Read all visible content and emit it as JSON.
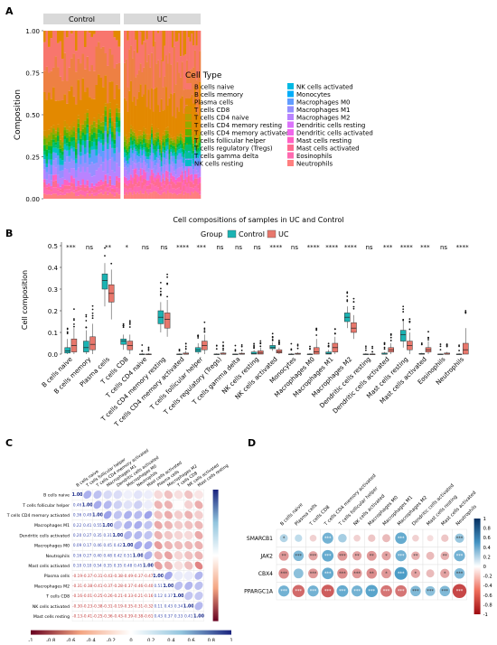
{
  "panels": {
    "a": "A",
    "b": "B",
    "c": "C",
    "d": "D"
  },
  "chart_data": [
    {
      "type": "area",
      "panel": "A",
      "facets": [
        "Control",
        "UC"
      ],
      "ylabel": "Composition",
      "yticks": [
        "0.00",
        "0.25",
        "0.50",
        "0.75",
        "1.00"
      ],
      "ylim": [
        0,
        1
      ],
      "legend_title": "Cell Type",
      "legend_placement": "right",
      "cell_types": [
        "B cells naive",
        "B cells memory",
        "Plasma cells",
        "T cells CD8",
        "T cells CD4 naive",
        "T cells CD4 memory resting",
        "T cells CD4 memory activated",
        "T cells follicular helper",
        "T cells regulatory (Tregs)",
        "T cells gamma delta",
        "NK cells resting",
        "NK cells activated",
        "Monocytes",
        "Macrophages M0",
        "Macrophages M1",
        "Macrophages M2",
        "Dendritic cells resting",
        "Dendritic cells activated",
        "Mast cells resting",
        "Mast cells activated",
        "Eosinophils",
        "Neutrophils"
      ],
      "colors": [
        "#F8766D",
        "#EE8043",
        "#E38900",
        "#D39200",
        "#B79F00",
        "#93AA00",
        "#5EB300",
        "#00BA38",
        "#00BF74",
        "#00C19F",
        "#00BFC4",
        "#00B9E3",
        "#00ADFA",
        "#619CFF",
        "#9590FF",
        "#B983FF",
        "#DB72FB",
        "#F066EA",
        "#FF61C3",
        "#FF6C91",
        "#FF6AB0",
        "#FF7F7F"
      ],
      "mean_composition": {
        "Control": {
          "Neutrophils_Mast_DC": 0.1,
          "Macrophages": 0.18,
          "T_cells": 0.18,
          "Plasma_B": 0.54
        },
        "UC": {
          "Neutrophils_Mast_DC": 0.15,
          "Macrophages": 0.12,
          "T_cells": 0.13,
          "Plasma_B": 0.6
        }
      }
    },
    {
      "type": "box",
      "panel": "B",
      "title": "Cell compositions of samples in UC and Control",
      "legend_title": "Group",
      "legend_placement": "top",
      "series": [
        {
          "name": "Control",
          "color": "#1BB3B3"
        },
        {
          "name": "UC",
          "color": "#E8776C"
        }
      ],
      "ylabel": "Cell composition",
      "ylim": [
        0,
        0.5
      ],
      "yticks": [
        "0.0",
        "0.1",
        "0.2",
        "0.3",
        "0.4",
        "0.5"
      ],
      "categories": [
        "B cells naive",
        "B cells memory",
        "Plasma cells",
        "T cells CD8",
        "T cells CD4 naive",
        "T cells CD4 memory resting",
        "T cells CD4 memory activated",
        "T cells follicular helper",
        "T cells regulatory (Tregs)",
        "T cells gamma delta",
        "NK cells resting",
        "NK cells activated",
        "Monocytes",
        "Macrophages M0",
        "Macrophages M1",
        "Macrophages M2",
        "Dendritic cells resting",
        "Dendritic cells activated",
        "Mast cells resting",
        "Mast cells activated",
        "Eosinophils",
        "Neutrophils"
      ],
      "significance": [
        "***",
        "ns",
        "**",
        "*",
        "ns",
        "ns",
        "****",
        "***",
        "ns",
        "ns",
        "ns",
        "****",
        "ns",
        "****",
        "****",
        "****",
        "ns",
        "***",
        "****",
        "***",
        "ns",
        "****"
      ],
      "control": [
        [
          0.0,
          0.005,
          0.015,
          0.03,
          0.07
        ],
        [
          0.0,
          0.01,
          0.03,
          0.06,
          0.11
        ],
        [
          0.22,
          0.3,
          0.34,
          0.37,
          0.42
        ],
        [
          0.02,
          0.045,
          0.06,
          0.07,
          0.09
        ],
        [
          0,
          0,
          0,
          0,
          0.004
        ],
        [
          0.1,
          0.14,
          0.17,
          0.2,
          0.24
        ],
        [
          0,
          0,
          0,
          0,
          0.003
        ],
        [
          0.0,
          0.01,
          0.02,
          0.03,
          0.05
        ],
        [
          0,
          0,
          0,
          0,
          0.003
        ],
        [
          0,
          0,
          0,
          0,
          0.002
        ],
        [
          0,
          0,
          0.002,
          0.01,
          0.02
        ],
        [
          0.015,
          0.025,
          0.03,
          0.04,
          0.055
        ],
        [
          0,
          0,
          0,
          0,
          0.004
        ],
        [
          0,
          0,
          0,
          0,
          0.004
        ],
        [
          0,
          0,
          0.003,
          0.01,
          0.02
        ],
        [
          0.12,
          0.15,
          0.17,
          0.19,
          0.22
        ],
        [
          0,
          0,
          0,
          0,
          0.004
        ],
        [
          0,
          0,
          0,
          0.005,
          0.01
        ],
        [
          0.03,
          0.06,
          0.09,
          0.11,
          0.15
        ],
        [
          0,
          0,
          0,
          0.003,
          0.006
        ],
        [
          0,
          0,
          0,
          0,
          0.002
        ],
        [
          0,
          0,
          0,
          0,
          0.004
        ]
      ],
      "uc": [
        [
          0.0,
          0.01,
          0.04,
          0.07,
          0.12
        ],
        [
          0.0,
          0.02,
          0.045,
          0.08,
          0.14
        ],
        [
          0.16,
          0.24,
          0.28,
          0.32,
          0.39
        ],
        [
          0.0,
          0.02,
          0.04,
          0.06,
          0.09
        ],
        [
          0,
          0,
          0,
          0,
          0.004
        ],
        [
          0.08,
          0.12,
          0.16,
          0.19,
          0.25
        ],
        [
          0,
          0,
          0,
          0.005,
          0.015
        ],
        [
          0.0,
          0.02,
          0.04,
          0.06,
          0.09
        ],
        [
          0,
          0,
          0,
          0.005,
          0.01
        ],
        [
          0,
          0,
          0,
          0.004,
          0.008
        ],
        [
          0,
          0,
          0.005,
          0.015,
          0.03
        ],
        [
          0.0,
          0.005,
          0.01,
          0.02,
          0.03
        ],
        [
          0,
          0,
          0,
          0.004,
          0.008
        ],
        [
          0,
          0,
          0.01,
          0.03,
          0.07
        ],
        [
          0,
          0.01,
          0.03,
          0.05,
          0.08
        ],
        [
          0.07,
          0.1,
          0.12,
          0.145,
          0.18
        ],
        [
          0,
          0,
          0,
          0,
          0.004
        ],
        [
          0,
          0.01,
          0.02,
          0.03,
          0.05
        ],
        [
          0,
          0.02,
          0.04,
          0.06,
          0.1
        ],
        [
          0,
          0.01,
          0.02,
          0.03,
          0.06
        ],
        [
          0,
          0,
          0,
          0.005,
          0.01
        ],
        [
          0,
          0,
          0.02,
          0.05,
          0.12
        ]
      ]
    },
    {
      "type": "heatmap",
      "panel": "C",
      "labels": [
        "B cells naive",
        "T cells follicular helper",
        "T cells CD4 memory activated",
        "Macrophages M1",
        "Dendritic cells activated",
        "Macrophages M0",
        "Neutrophils",
        "Mast cells activated",
        "Plasma cells",
        "Macrophages M2",
        "T cells CD8",
        "NK cells activated",
        "Mast cells resting"
      ],
      "colorbar": [
        "-1",
        "-0.8",
        "-0.6",
        "-0.4",
        "-0.2",
        "0",
        "0.2",
        "0.4",
        "0.6",
        "0.8",
        "1"
      ],
      "matrix": [
        [
          "1.00",
          "0.46",
          "0.36",
          "0.22",
          "0.20",
          "0.09",
          "0.16",
          "0.10",
          "-0.19",
          "-0.31",
          "-0.16",
          "-0.30",
          "-0.13"
        ],
        [
          "0.46",
          "1.00",
          "0.49",
          "0.41",
          "0.27",
          "0.17",
          "0.27",
          "0.10",
          "-0.37",
          "-0.38",
          "-0.01",
          "-0.23",
          "-0.41"
        ],
        [
          "0.36",
          "0.49",
          "1.00",
          "0.55",
          "0.35",
          "0.46",
          "0.40",
          "0.54",
          "-0.31",
          "-0.41",
          "-0.25",
          "-0.38",
          "-0.25"
        ],
        [
          "0.22",
          "0.41",
          "0.55",
          "1.00",
          "0.31",
          "0.45",
          "0.48",
          "0.35",
          "-0.43",
          "-0.37",
          "-0.26",
          "-0.31",
          "-0.36"
        ],
        [
          "0.20",
          "0.27",
          "0.35",
          "0.31",
          "1.00",
          "0.42",
          "0.42",
          "0.35",
          "-0.38",
          "-0.28",
          "-0.21",
          "-0.19",
          "-0.43"
        ],
        [
          "0.09",
          "0.17",
          "0.46",
          "0.45",
          "0.42",
          "1.00",
          "0.51",
          "0.48",
          "-0.49",
          "-0.37",
          "-0.33",
          "-0.35",
          "-0.39"
        ],
        [
          "0.16",
          "0.27",
          "0.40",
          "0.48",
          "0.42",
          "0.51",
          "1.00",
          "0.45",
          "-0.37",
          "-0.46",
          "-0.21",
          "-0.31",
          "-0.38"
        ],
        [
          "0.10",
          "0.10",
          "0.54",
          "0.35",
          "0.35",
          "0.48",
          "0.45",
          "1.00",
          "-0.47",
          "-0.40",
          "-0.16",
          "-0.32",
          "-0.61"
        ],
        [
          "-0.19",
          "-0.37",
          "-0.31",
          "-0.43",
          "-0.38",
          "-0.49",
          "-0.37",
          "-0.47",
          "1.00",
          "0.51",
          "0.12",
          "0.11",
          "0.43"
        ],
        [
          "-0.31",
          "-0.38",
          "-0.41",
          "-0.37",
          "-0.28",
          "-0.37",
          "-0.46",
          "-0.40",
          "0.51",
          "1.00",
          "0.37",
          "0.43",
          "0.37"
        ],
        [
          "-0.16",
          "-0.01",
          "-0.25",
          "-0.26",
          "-0.21",
          "-0.33",
          "-0.21",
          "-0.16",
          "0.12",
          "0.37",
          "1.00",
          "0.34",
          "0.33"
        ],
        [
          "-0.30",
          "-0.23",
          "-0.38",
          "-0.31",
          "-0.19",
          "-0.35",
          "-0.31",
          "-0.32",
          "0.11",
          "0.43",
          "0.34",
          "1.00",
          "0.41"
        ],
        [
          "-0.13",
          "-0.41",
          "-0.25",
          "-0.36",
          "-0.43",
          "-0.39",
          "-0.38",
          "-0.61",
          "0.43",
          "0.37",
          "0.33",
          "0.41",
          "1.00"
        ]
      ]
    },
    {
      "type": "heatmap",
      "panel": "D",
      "columns": [
        "B cells naive",
        "Plasma cells",
        "T cells CD8",
        "T cells CD4 memory activated",
        "T cells follicular helper",
        "NK cells activated",
        "Macrophages M0",
        "Macrophages M1",
        "Macrophages M2",
        "Dendritic cells activated",
        "Mast cells resting",
        "Mast cells activated",
        "Neutrophils"
      ],
      "rows": [
        "SMARCB1",
        "JAK2",
        "CBX4",
        "PPARGC1A"
      ],
      "colorbar": [
        "1",
        "0.8",
        "0.6",
        "0.4",
        "0.2",
        "0",
        "-0.2",
        "-0.4",
        "-0.6",
        "-0.8",
        "-1"
      ],
      "matrix": [
        [
          0.3,
          0.25,
          -0.2,
          0.55,
          0.35,
          -0.2,
          -0.25,
          -0.3,
          0.6,
          -0.2,
          -0.15,
          -0.25,
          0.4
        ],
        [
          -0.45,
          0.5,
          -0.4,
          0.6,
          -0.45,
          -0.4,
          -0.45,
          -0.4,
          0.55,
          -0.35,
          -0.3,
          -0.35,
          0.55
        ],
        [
          -0.5,
          0.45,
          -0.45,
          0.6,
          -0.5,
          -0.45,
          -0.5,
          -0.45,
          0.7,
          -0.4,
          -0.3,
          -0.4,
          0.5
        ],
        [
          0.55,
          -0.65,
          0.55,
          -0.7,
          0.6,
          0.55,
          0.65,
          -0.6,
          -0.6,
          0.5,
          0.45,
          0.5,
          -0.8
        ]
      ],
      "stars": [
        [
          "*",
          "",
          "",
          "***",
          "",
          "",
          "",
          "",
          "***",
          "",
          "",
          "",
          "***"
        ],
        [
          "**",
          "***",
          "***",
          "***",
          "***",
          "**",
          "**",
          "*",
          "***",
          "**",
          "",
          "**",
          "***"
        ],
        [
          "***",
          "",
          "***",
          "***",
          "***",
          "***",
          "**",
          "*",
          "***",
          "*",
          "",
          "*",
          "***"
        ],
        [
          "***",
          "***",
          "***",
          "***",
          "***",
          "***",
          "***",
          "***",
          "***",
          "***",
          "***",
          "***",
          "***"
        ]
      ]
    }
  ]
}
